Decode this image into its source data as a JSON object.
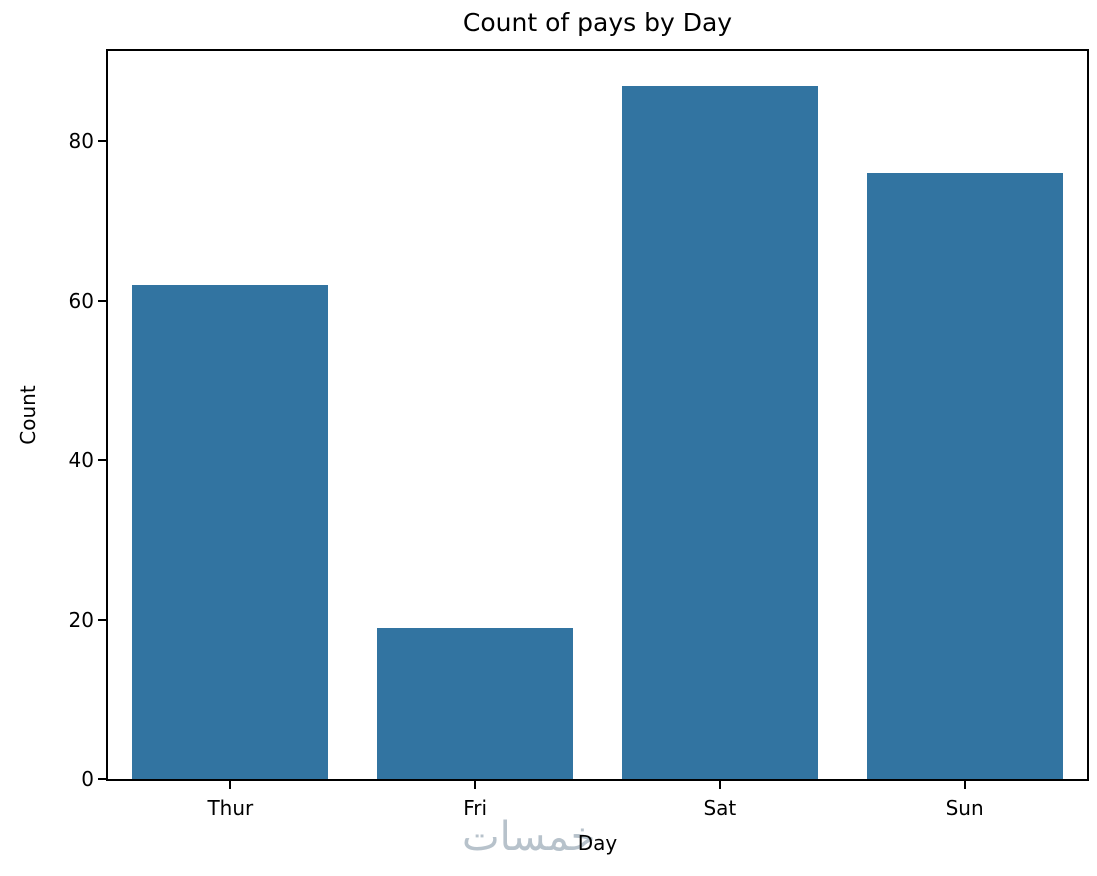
{
  "chart_data": {
    "type": "bar",
    "title": "Count of pays by Day",
    "xlabel": "Day",
    "ylabel": "Count",
    "categories": [
      "Thur",
      "Fri",
      "Sat",
      "Sun"
    ],
    "values": [
      62,
      19,
      87,
      76
    ],
    "yticks": [
      0,
      20,
      40,
      60,
      80
    ],
    "ylim": [
      0,
      91.35
    ],
    "bar_color": "#3274a1",
    "bar_width_frac": 0.8,
    "grid": false,
    "legend": null
  },
  "watermark": {
    "text": "خمسات",
    "color": "#b7c2cb"
  },
  "colors": {
    "axis": "#000000",
    "text": "#000000",
    "background": "#ffffff"
  }
}
